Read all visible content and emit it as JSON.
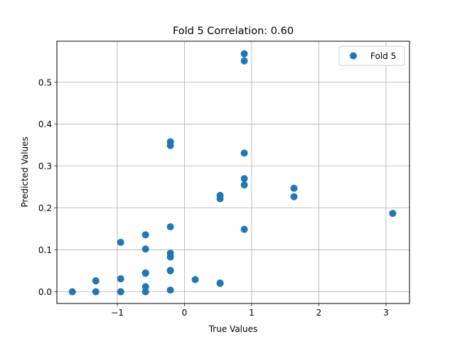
{
  "chart_data": {
    "type": "scatter",
    "title": "Fold 5 Correlation: 0.60",
    "xlabel": "True Values",
    "ylabel": "Predicted Values",
    "xlim": [
      -1.9,
      3.35
    ],
    "ylim": [
      -0.028,
      0.598
    ],
    "xticks": [
      -1,
      0,
      1,
      2,
      3
    ],
    "xtick_labels": [
      "−1",
      "0",
      "1",
      "2",
      "3"
    ],
    "yticks": [
      0.0,
      0.1,
      0.2,
      0.3,
      0.4,
      0.5
    ],
    "ytick_labels": [
      "0.0",
      "0.1",
      "0.2",
      "0.3",
      "0.4",
      "0.5"
    ],
    "grid": true,
    "legend": {
      "placement": "top-right"
    },
    "series": [
      {
        "name": "Fold 5",
        "color": "#1f77b4",
        "points": [
          [
            -1.67,
            0.0
          ],
          [
            -1.32,
            0.026
          ],
          [
            -1.32,
            0.0
          ],
          [
            -0.95,
            0.118
          ],
          [
            -0.95,
            0.031
          ],
          [
            -0.95,
            0.0
          ],
          [
            -0.95,
            0.0
          ],
          [
            -0.58,
            0.136
          ],
          [
            -0.58,
            0.102
          ],
          [
            -0.58,
            0.045
          ],
          [
            -0.58,
            0.044
          ],
          [
            -0.58,
            0.012
          ],
          [
            -0.58,
            0.0
          ],
          [
            -0.21,
            0.358
          ],
          [
            -0.21,
            0.349
          ],
          [
            -0.21,
            0.155
          ],
          [
            -0.21,
            0.092
          ],
          [
            -0.21,
            0.083
          ],
          [
            -0.21,
            0.051
          ],
          [
            -0.21,
            0.05
          ],
          [
            -0.21,
            0.004
          ],
          [
            0.16,
            0.029
          ],
          [
            0.53,
            0.23
          ],
          [
            0.53,
            0.222
          ],
          [
            0.53,
            0.021
          ],
          [
            0.53,
            0.02
          ],
          [
            0.89,
            0.568
          ],
          [
            0.89,
            0.551
          ],
          [
            0.89,
            0.331
          ],
          [
            0.89,
            0.27
          ],
          [
            0.89,
            0.255
          ],
          [
            0.89,
            0.149
          ],
          [
            1.63,
            0.247
          ],
          [
            1.63,
            0.227
          ],
          [
            3.1,
            0.187
          ]
        ]
      }
    ]
  }
}
